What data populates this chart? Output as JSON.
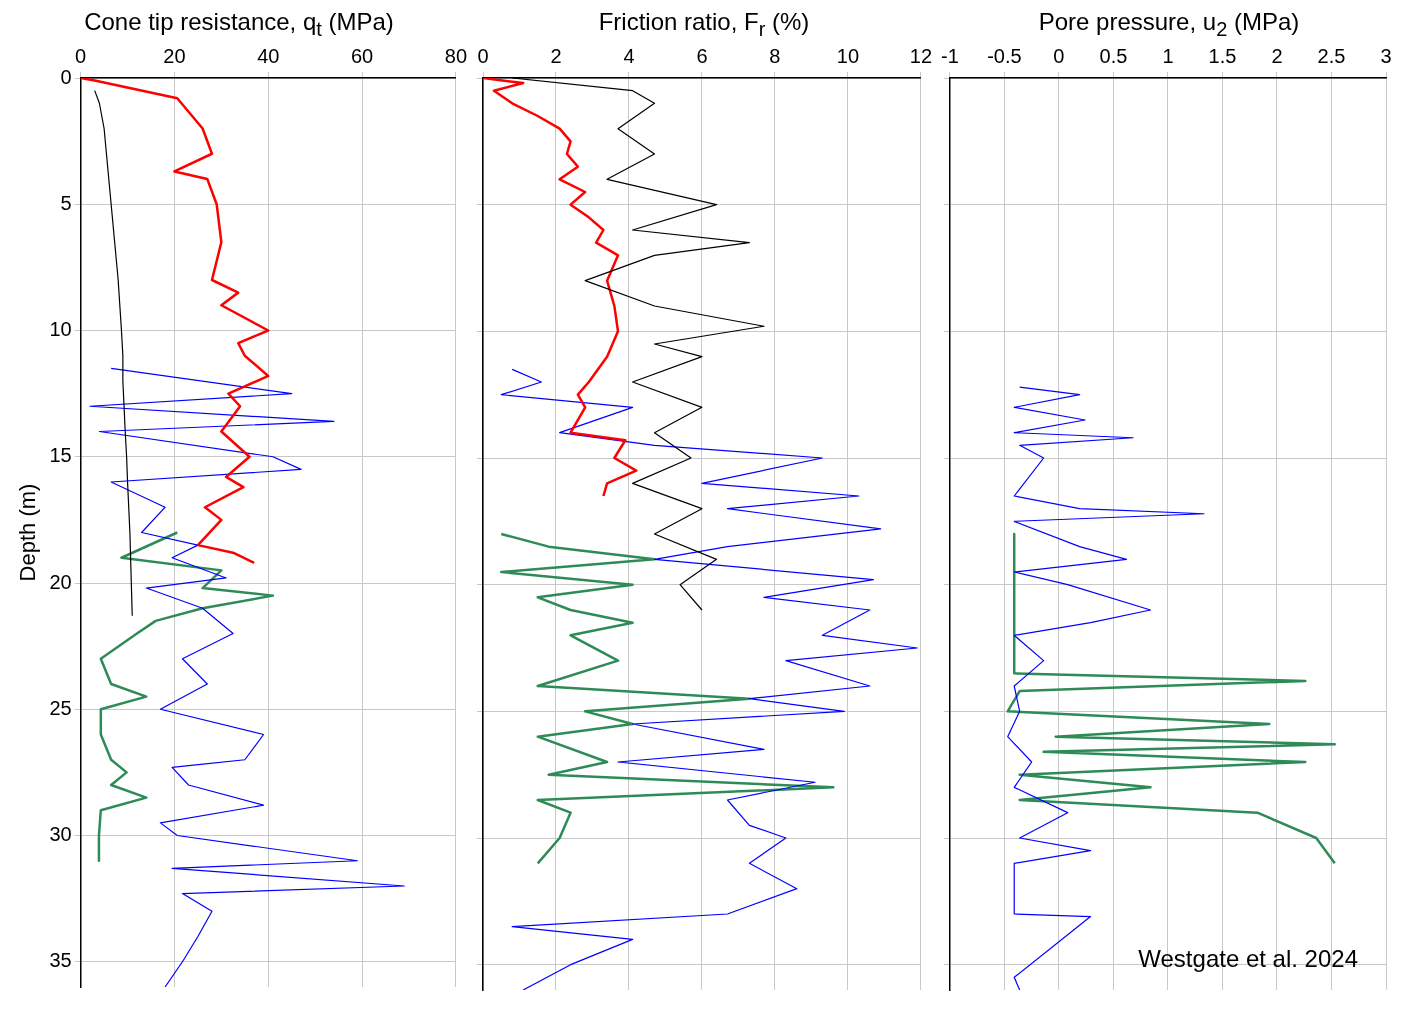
{
  "chart_data": [
    {
      "type": "line",
      "xlabel": "Cone tip resistance, q$_{t}$ (MPa)",
      "ylabel": "Depth (m)",
      "xlim": [
        0,
        80
      ],
      "xticks": [
        0,
        20,
        40,
        60,
        80
      ],
      "ylim": [
        36,
        0
      ],
      "yticks": [
        0,
        5,
        10,
        15,
        20,
        25,
        30,
        35
      ],
      "grid": true,
      "marker": "none",
      "series": [
        {
          "color": "#000000",
          "x": [
            3,
            4,
            5,
            6,
            6.5,
            7,
            7.5,
            8,
            8.7,
            9,
            9,
            9.5,
            9.8,
            10,
            10.5,
            10.8,
            11
          ],
          "values": [
            0.5,
            1,
            2,
            4,
            5,
            6,
            7,
            8,
            10,
            11,
            12,
            14,
            15,
            16,
            18,
            20,
            21.3
          ]
        },
        {
          "color": "#ff0000",
          "x": [
            0,
            3,
            20.6,
            26,
            28,
            20,
            27,
            29,
            30,
            28,
            33.6,
            30,
            40,
            33.6,
            35,
            40,
            31.5,
            34,
            30,
            36,
            31,
            34.7,
            26.5,
            30,
            25,
            32.5,
            37
          ],
          "values": [
            0,
            0.1,
            0.8,
            2,
            3,
            3.7,
            4,
            5,
            6.5,
            8,
            8.5,
            9,
            10,
            10.5,
            11,
            11.8,
            12.5,
            13,
            14,
            15,
            15.8,
            16.2,
            17,
            17.5,
            18.5,
            18.8,
            19.2
          ]
        },
        {
          "color": "#0000ff",
          "x": [
            6.5,
            45,
            2,
            54,
            4,
            41,
            47,
            6.5,
            18,
            13,
            25,
            19.5,
            31,
            14,
            26,
            32.5,
            21.7,
            27,
            17,
            39,
            35,
            19.5,
            23,
            39,
            17,
            20.6,
            59,
            19.5,
            69,
            21.7,
            28,
            25,
            21.7,
            18
          ],
          "values": [
            11.5,
            12.5,
            13,
            13.6,
            14,
            15,
            15.5,
            16,
            17,
            18,
            18.5,
            19,
            19.8,
            20.2,
            21,
            22,
            23,
            24,
            25,
            26,
            27,
            27.3,
            28,
            28.8,
            29.5,
            30,
            31,
            31.3,
            32,
            32.3,
            33,
            34,
            35,
            36
          ]
        },
        {
          "color": "#2e8b57",
          "x": [
            20.6,
            8.7,
            30,
            26,
            41,
            26,
            16,
            12,
            4.3,
            6.5,
            14,
            4.3,
            4.3,
            6.5,
            9.8,
            6.5,
            14,
            4.3,
            3.9,
            3.9
          ],
          "values": [
            18,
            19,
            19.5,
            20.2,
            20.5,
            21,
            21.5,
            22,
            23,
            24,
            24.5,
            25,
            26,
            27,
            27.5,
            28,
            28.5,
            29,
            30,
            31
          ]
        }
      ]
    },
    {
      "type": "line",
      "xlabel": "Friction ratio, F$_{r}$ (%)",
      "xlim": [
        0,
        12
      ],
      "xticks": [
        0,
        2,
        4,
        6,
        8,
        10,
        12
      ],
      "ylim": [
        36,
        0
      ],
      "yticks": [
        0,
        5,
        10,
        15,
        20,
        25,
        30,
        35
      ],
      "grid": true,
      "tick_labels": "x",
      "marker": "none",
      "series": [
        {
          "color": "#000000",
          "x": [
            0.8,
            4.1,
            4.7,
            3.7,
            4.7,
            3.4,
            6.4,
            4.1,
            7.3,
            4.7,
            2.8,
            4.7,
            7.7,
            4.7,
            6,
            4.1,
            6,
            4.7,
            5.7,
            4.1,
            6,
            4.7,
            6.4,
            5.4,
            6
          ],
          "values": [
            0,
            0.5,
            1,
            2,
            3,
            4,
            5,
            6,
            6.5,
            7,
            8,
            9,
            9.8,
            10.5,
            11,
            12,
            13,
            14,
            15,
            16,
            17,
            18,
            19,
            20,
            21
          ]
        },
        {
          "color": "#ff0000",
          "x": [
            0,
            1.1,
            0.3,
            0.8,
            1.5,
            2.1,
            2.4,
            2.3,
            2.6,
            2.1,
            2.8,
            2.4,
            2.9,
            3.3,
            3.1,
            3.7,
            3.4,
            3.6,
            3.7,
            3.4,
            2.9,
            2.6,
            2.8,
            2.4,
            3.9,
            3.6,
            4.2,
            3.4,
            3.3
          ],
          "values": [
            0,
            0.2,
            0.5,
            1,
            1.5,
            2,
            2.5,
            3,
            3.5,
            4,
            4.5,
            5,
            5.5,
            6,
            6.5,
            7,
            8,
            9,
            10,
            11,
            12,
            12.5,
            13,
            14,
            14.3,
            15,
            15.5,
            16,
            16.5
          ]
        },
        {
          "color": "#0000ff",
          "x": [
            0.8,
            1.6,
            0.5,
            4.1,
            2.1,
            4.7,
            9.3,
            6,
            10.3,
            6.7,
            10.9,
            6.7,
            4.7,
            10.7,
            7.7,
            10.6,
            9.3,
            11.9,
            8.3,
            10.6,
            7.3,
            9.9,
            4.1,
            7.7,
            3.7,
            9.1,
            6.7,
            7.3,
            8.3,
            7.3,
            8.6,
            6.7,
            0.8,
            4.1,
            2.4,
            1.1
          ],
          "values": [
            11.5,
            12,
            12.5,
            13,
            14,
            14.5,
            15,
            16,
            16.5,
            17,
            17.8,
            18.5,
            19,
            19.8,
            20.5,
            21,
            22,
            22.5,
            23,
            24,
            24.5,
            25,
            25.5,
            26.5,
            27,
            27.8,
            28.5,
            29.5,
            30,
            31,
            32,
            33,
            33.5,
            34,
            35,
            36
          ]
        },
        {
          "color": "#2e8b57",
          "x": [
            0.5,
            1.8,
            4.7,
            0.5,
            4.1,
            1.5,
            2.4,
            4.1,
            2.4,
            3.7,
            1.5,
            7.3,
            2.8,
            4.1,
            1.5,
            3.4,
            1.8,
            9.6,
            1.5,
            2.4,
            2.1,
            1.5
          ],
          "values": [
            18,
            18.5,
            19,
            19.5,
            20,
            20.5,
            21,
            21.5,
            22,
            23,
            24,
            24.5,
            25,
            25.5,
            26,
            27,
            27.5,
            28,
            28.5,
            29,
            30,
            31
          ]
        }
      ]
    },
    {
      "type": "line",
      "xlabel": "Pore pressure, u$_{2}$ (MPa)",
      "xlim": [
        -1,
        3
      ],
      "xticks": [
        -1,
        -0.5,
        0,
        0.5,
        1,
        1.5,
        2,
        2.5,
        3
      ],
      "ylim": [
        36,
        0
      ],
      "yticks": [
        0,
        5,
        10,
        15,
        20,
        25,
        30,
        35
      ],
      "grid": true,
      "tick_labels": "x",
      "marker": "none",
      "annotations": [
        "Westgate et al. 2024"
      ],
      "series": [
        {
          "color": "#0000ff",
          "x": [
            -0.36,
            0.19,
            -0.41,
            0.24,
            -0.41,
            0.68,
            -0.36,
            -0.14,
            -0.41,
            0.19,
            1.33,
            -0.41,
            0.19,
            0.62,
            -0.41,
            0.08,
            0.84,
            0.29,
            -0.41,
            -0.14,
            -0.41,
            -0.36,
            -0.47,
            -0.25,
            -0.41,
            0.08,
            -0.36,
            0.29,
            -0.41,
            -0.41,
            0.29,
            -0.41,
            -0.36
          ],
          "values": [
            12.2,
            12.5,
            13,
            13.5,
            14,
            14.2,
            14.5,
            15,
            16.5,
            17,
            17.2,
            17.5,
            18.5,
            19,
            19.5,
            20,
            21,
            21.5,
            22,
            23,
            24,
            25,
            26,
            27,
            28,
            29,
            30,
            30.5,
            31,
            33,
            33.1,
            35.5,
            36
          ]
        },
        {
          "color": "#2e8b57",
          "x": [
            -0.41,
            -0.41,
            2.26,
            -0.36,
            -0.47,
            1.93,
            -0.03,
            2.53,
            -0.14,
            2.26,
            -0.36,
            0.84,
            -0.36,
            1.82,
            2.36,
            2.53
          ],
          "values": [
            18,
            23.5,
            23.8,
            24.2,
            25,
            25.5,
            26,
            26.3,
            26.6,
            27,
            27.5,
            28,
            28.5,
            29,
            30,
            31
          ]
        }
      ]
    }
  ]
}
